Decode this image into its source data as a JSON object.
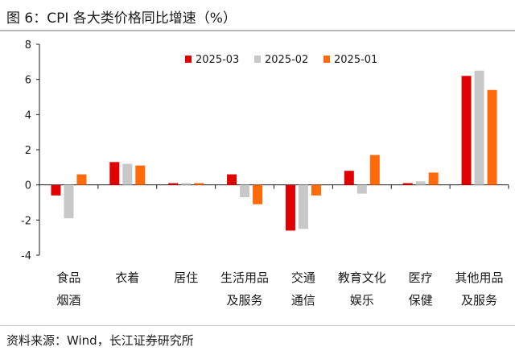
{
  "title": "图 6：CPI 各大类价格同比增速（%）",
  "source": "资料来源：Wind，长江证券研究所",
  "chart_data": {
    "type": "bar",
    "title": "CPI 各大类价格同比增速（%）",
    "xlabel": "",
    "ylabel": "",
    "ylim": [
      -4,
      8
    ],
    "yticks": [
      -4,
      -2,
      0,
      2,
      4,
      6,
      8
    ],
    "grid": false,
    "legend_position": "top-center",
    "categories": [
      [
        "食品",
        "烟酒"
      ],
      [
        "衣着"
      ],
      [
        "居住"
      ],
      [
        "生活用品",
        "及服务"
      ],
      [
        "交通",
        "通信"
      ],
      [
        "教育文化",
        "娱乐"
      ],
      [
        "医疗",
        "保健"
      ],
      [
        "其他用品",
        "及服务"
      ]
    ],
    "series": [
      {
        "name": "2025-03",
        "color": "#e00000",
        "values": [
          -0.6,
          1.3,
          0.1,
          0.6,
          -2.6,
          0.8,
          0.1,
          6.2
        ]
      },
      {
        "name": "2025-02",
        "color": "#c8c8c8",
        "values": [
          -1.9,
          1.2,
          0.1,
          -0.7,
          -2.5,
          -0.5,
          0.2,
          6.5
        ]
      },
      {
        "name": "2025-01",
        "color": "#ff6a0a",
        "values": [
          0.6,
          1.1,
          0.1,
          -1.1,
          -0.6,
          1.7,
          0.7,
          5.4
        ]
      }
    ]
  }
}
